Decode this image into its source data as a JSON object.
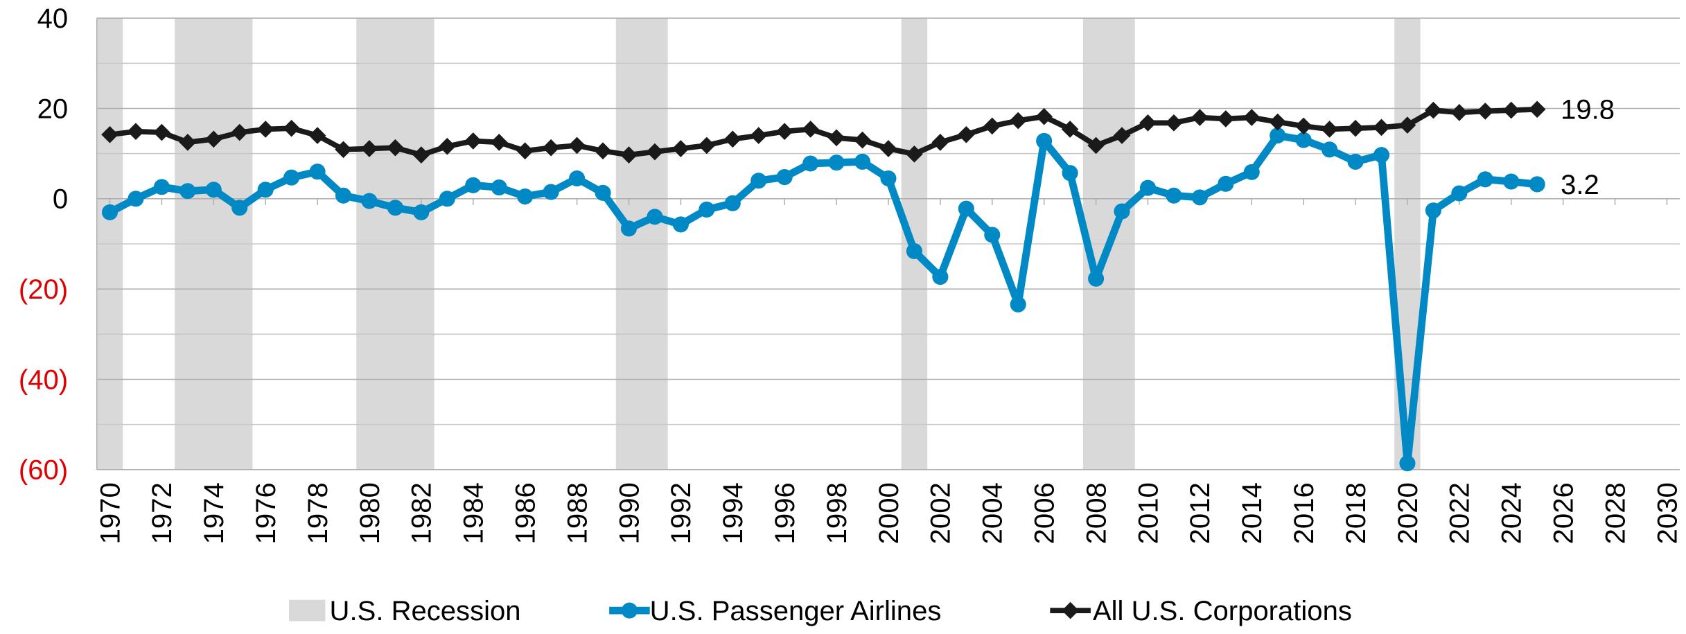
{
  "chart_data": {
    "type": "line",
    "x": [
      1970,
      1971,
      1972,
      1973,
      1974,
      1975,
      1976,
      1977,
      1978,
      1979,
      1980,
      1981,
      1982,
      1983,
      1984,
      1985,
      1986,
      1987,
      1988,
      1989,
      1990,
      1991,
      1992,
      1993,
      1994,
      1995,
      1996,
      1997,
      1998,
      1999,
      2000,
      2001,
      2002,
      2003,
      2004,
      2005,
      2006,
      2007,
      2008,
      2009,
      2010,
      2011,
      2012,
      2013,
      2014,
      2015,
      2016,
      2017,
      2018,
      2019,
      2020,
      2021,
      2022,
      2023,
      2024,
      2025
    ],
    "recessions": {
      "name": "U.S. Recession",
      "color": "#d9d9d9",
      "periods": [
        [
          1969.5,
          1970.5
        ],
        [
          1972.5,
          1975.5
        ],
        [
          1979.5,
          1982.5
        ],
        [
          1989.5,
          1991.5
        ],
        [
          2000.5,
          2001.5
        ],
        [
          2007.5,
          2009.5
        ],
        [
          2019.5,
          2020.5
        ]
      ]
    },
    "series": [
      {
        "name": "U.S. Passenger Airlines",
        "color": "#0089c4",
        "marker": "circle",
        "values": [
          -3,
          0,
          2.6,
          1.7,
          2,
          -2,
          2,
          4.7,
          6,
          0.7,
          -0.5,
          -2,
          -3,
          0,
          3,
          2.5,
          0.5,
          1.5,
          4.5,
          1.3,
          -6.6,
          -4,
          -5.7,
          -2.4,
          -1,
          4,
          4.8,
          7.8,
          8,
          8.2,
          4.5,
          -11.6,
          -17.3,
          -2.2,
          -8,
          -23.4,
          12.8,
          5.7,
          -17.7,
          -2.8,
          2.4,
          0.7,
          0.3,
          3.3,
          5.9,
          14,
          13,
          10.9,
          8.2,
          9.7,
          -58.6,
          -2.6,
          1.2,
          4.3,
          3.8,
          3.2
        ]
      },
      {
        "name": "All U.S. Corporations",
        "color": "#1a1a1a",
        "marker": "diamond",
        "values": [
          14.2,
          14.9,
          14.7,
          12.5,
          13.2,
          14.7,
          15.4,
          15.6,
          14,
          10.9,
          11.1,
          11.3,
          9.7,
          11.6,
          12.8,
          12.5,
          10.6,
          11.3,
          11.8,
          10.6,
          9.7,
          10.4,
          11.1,
          11.8,
          13.2,
          14,
          14.9,
          15.4,
          13.5,
          13,
          11.1,
          9.9,
          12.5,
          14.2,
          16.1,
          17.3,
          18.2,
          15.4,
          11.8,
          14,
          16.8,
          16.8,
          18,
          17.7,
          18,
          17,
          16.1,
          15.4,
          15.6,
          15.8,
          16.3,
          19.6,
          19.1,
          19.4,
          19.6,
          19.8
        ]
      }
    ],
    "label_last": true,
    "xlim": [
      1969.5,
      2030.5
    ],
    "xticks": [
      1970,
      1972,
      1974,
      1976,
      1978,
      1980,
      1982,
      1984,
      1986,
      1988,
      1990,
      1992,
      1994,
      1996,
      1998,
      2000,
      2002,
      2004,
      2006,
      2008,
      2010,
      2012,
      2014,
      2016,
      2018,
      2020,
      2022,
      2024,
      2026,
      2028,
      2030
    ],
    "ylim": [
      -60,
      40
    ],
    "yticks": [
      40,
      20,
      0,
      {
        "value": -20,
        "label": "(20)"
      },
      {
        "value": -40,
        "label": "(40)"
      },
      {
        "value": -60,
        "label": "(60)"
      }
    ],
    "ygrid_minor": [
      30,
      10,
      -10,
      -30,
      -50
    ],
    "grid": true,
    "negative_tick_color": "#e00000",
    "legend": "bottom"
  }
}
